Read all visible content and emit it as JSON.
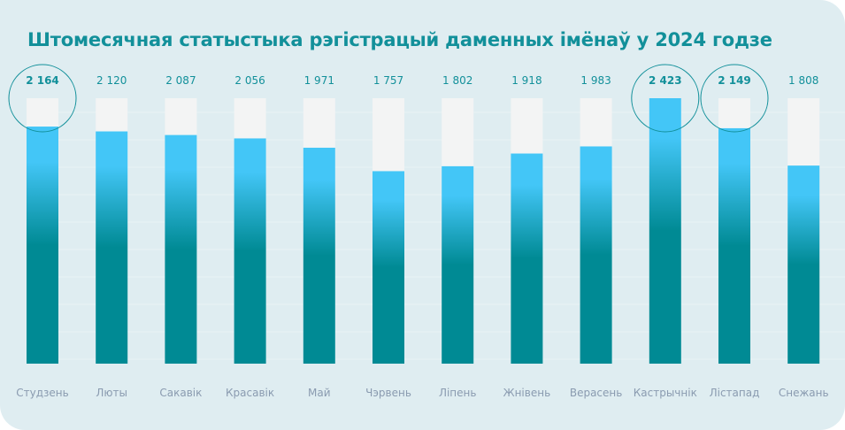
{
  "title": "Штомесячная статыстыка рэгістрацый даменных імёнаў у 2024 годзе",
  "colors": {
    "title": "#12909a",
    "bar_top": "#43c6f7",
    "bar_bottom": "#008a94",
    "track": "#f3f4f4",
    "highlight_circle": "#12909a",
    "month_label": "#8a9bb0"
  },
  "chart_data": {
    "type": "bar",
    "title": "Штомесячная статыстыка рэгістрацый даменных імёнаў у 2024 годзе",
    "categories": [
      "Студзень",
      "Люты",
      "Сакавік",
      "Красавік",
      "Май",
      "Чэрвень",
      "Ліпень",
      "Жнівень",
      "Верасень",
      "Кастрычнік",
      "Лістапад",
      "Снежань"
    ],
    "values": [
      2164,
      2120,
      2087,
      2056,
      1971,
      1757,
      1802,
      1918,
      1983,
      2423,
      2149,
      1808
    ],
    "value_labels": [
      "2 164",
      "2 120",
      "2 087",
      "2 056",
      "1 971",
      "1 757",
      "1 802",
      "1 918",
      "1 983",
      "2 423",
      "2 149",
      "1 808"
    ],
    "highlighted": [
      "Студзень",
      "Кастрычнік",
      "Лістапад"
    ],
    "ylim": [
      0,
      2423
    ],
    "grid": true,
    "legend": "none"
  }
}
